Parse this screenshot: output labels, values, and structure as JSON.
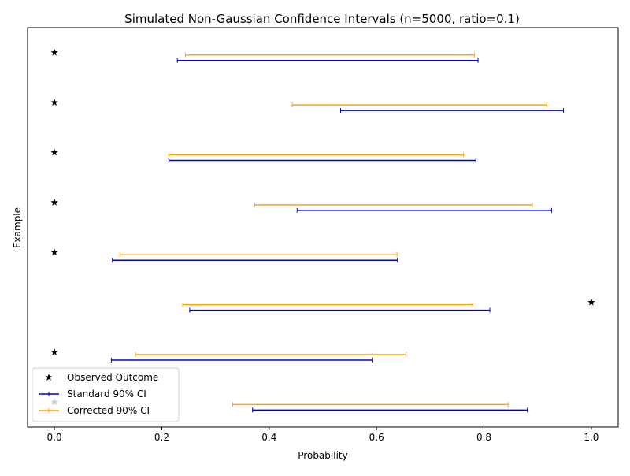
{
  "chart_data": {
    "type": "errorbar-interval",
    "title": "Simulated Non-Gaussian Confidence Intervals (n=5000, ratio=0.1)",
    "xlabel": "Probability",
    "ylabel": "Example",
    "xlim": [
      -0.05,
      1.05
    ],
    "xticks": [
      0.0,
      0.2,
      0.4,
      0.6,
      0.8,
      1.0
    ],
    "xtick_labels": [
      "0.0",
      "0.2",
      "0.4",
      "0.6",
      "0.8",
      "1.0"
    ],
    "ylim": [
      -0.5,
      7.5
    ],
    "yticks_visible": false,
    "grid": false,
    "legend_position": "lower-left",
    "colors": {
      "observed": "#000000",
      "standard": "#0000cd",
      "corrected": "#ffa500"
    },
    "series": [
      {
        "name": "Observed Outcome",
        "marker": "star",
        "points": [
          {
            "y": 7,
            "x": 0
          },
          {
            "y": 6,
            "x": 0
          },
          {
            "y": 5,
            "x": 0
          },
          {
            "y": 4,
            "x": 0
          },
          {
            "y": 3,
            "x": 0
          },
          {
            "y": 2,
            "x": 1
          },
          {
            "y": 1,
            "x": 0
          },
          {
            "y": 0,
            "x": 0
          }
        ]
      },
      {
        "name": "Standard 90% CI",
        "intervals": [
          {
            "y": 7,
            "low": 0.229,
            "high": 0.789
          },
          {
            "y": 6,
            "low": 0.533,
            "high": 0.948
          },
          {
            "y": 5,
            "low": 0.213,
            "high": 0.785
          },
          {
            "y": 4,
            "low": 0.452,
            "high": 0.926
          },
          {
            "y": 3,
            "low": 0.108,
            "high": 0.639
          },
          {
            "y": 2,
            "low": 0.252,
            "high": 0.811
          },
          {
            "y": 1,
            "low": 0.106,
            "high": 0.593
          },
          {
            "y": 0,
            "low": 0.369,
            "high": 0.881
          }
        ]
      },
      {
        "name": "Corrected 90% CI",
        "intervals": [
          {
            "y": 7,
            "low": 0.244,
            "high": 0.782
          },
          {
            "y": 6,
            "low": 0.443,
            "high": 0.917
          },
          {
            "y": 5,
            "low": 0.213,
            "high": 0.762
          },
          {
            "y": 4,
            "low": 0.373,
            "high": 0.89
          },
          {
            "y": 3,
            "low": 0.122,
            "high": 0.638
          },
          {
            "y": 2,
            "low": 0.239,
            "high": 0.779
          },
          {
            "y": 1,
            "low": 0.151,
            "high": 0.655
          },
          {
            "y": 0,
            "low": 0.332,
            "high": 0.845
          }
        ]
      }
    ]
  }
}
